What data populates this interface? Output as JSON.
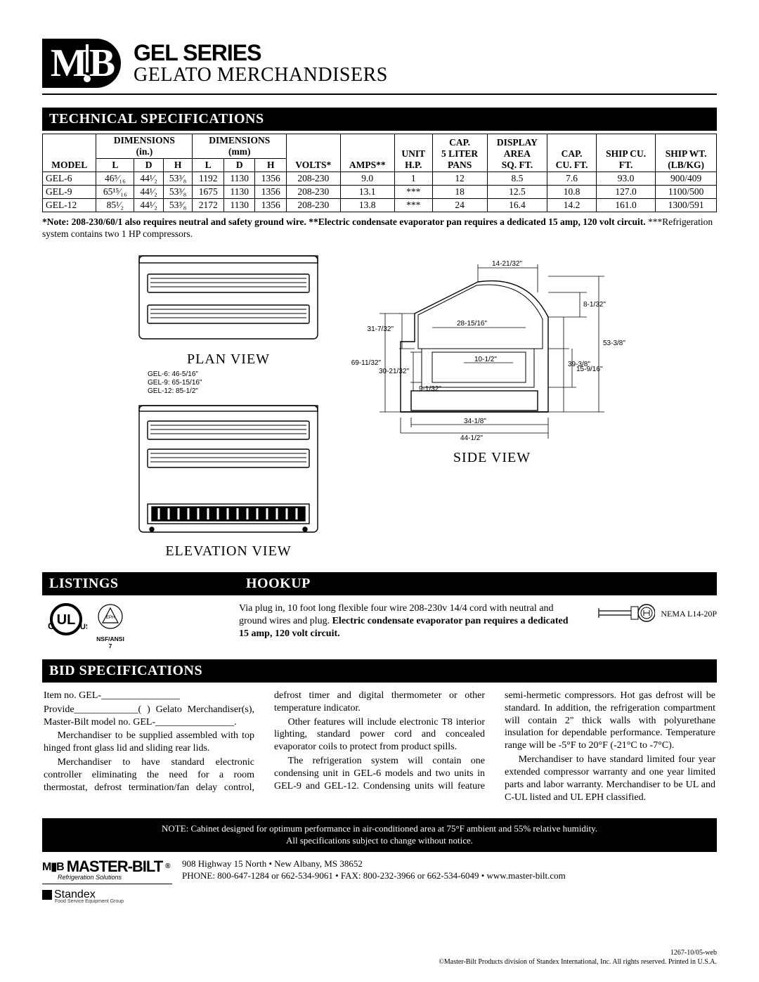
{
  "header": {
    "series": "GEL SERIES",
    "product": "GELATO MERCHANDISERS"
  },
  "sections": {
    "tech": "TECHNICAL SPECIFICATIONS",
    "listings": "LISTINGS",
    "hookup": "HOOKUP",
    "bid": "BID SPECIFICATIONS"
  },
  "spec_table": {
    "group_headers": {
      "dim_in": "DIMENSIONS\n(in.)",
      "dim_mm": "DIMENSIONS\n(mm)",
      "cap_pans": "CAP.\n5 LITER\nPANS",
      "disp_area": "DISPLAY\nAREA\nSQ. FT.",
      "cap_cuft": "CAP.\nCU. FT.",
      "ship_cuft": "SHIP CU.\nFT.",
      "ship_wt": "SHIP WT.\n(LB/KG)"
    },
    "col_headers": [
      "MODEL",
      "L",
      "D",
      "H",
      "L",
      "D",
      "H",
      "VOLTS*",
      "AMPS**",
      "UNIT\nH.P."
    ],
    "rows": [
      {
        "model": "GEL-6",
        "Lin": "46⁵⁄₁₆",
        "Din": "44¹⁄₂",
        "Hin": "53³⁄₈",
        "Lmm": "1192",
        "Dmm": "1130",
        "Hmm": "1356",
        "volts": "208-230",
        "amps": "9.0",
        "hp": "1",
        "pans": "12",
        "area": "8.5",
        "cuft": "7.6",
        "shipcu": "93.0",
        "shipwt": "900/409"
      },
      {
        "model": "GEL-9",
        "Lin": "65¹⁵⁄₁₆",
        "Din": "44¹⁄₂",
        "Hin": "53³⁄₈",
        "Lmm": "1675",
        "Dmm": "1130",
        "Hmm": "1356",
        "volts": "208-230",
        "amps": "13.1",
        "hp": "***",
        "pans": "18",
        "area": "12.5",
        "cuft": "10.8",
        "shipcu": "127.0",
        "shipwt": "1100/500"
      },
      {
        "model": "GEL-12",
        "Lin": "85¹⁄₂",
        "Din": "44¹⁄₂",
        "Hin": "53³⁄₈",
        "Lmm": "2172",
        "Dmm": "1130",
        "Hmm": "1356",
        "volts": "208-230",
        "amps": "13.8",
        "hp": "***",
        "pans": "24",
        "area": "16.4",
        "cuft": "14.2",
        "shipcu": "161.0",
        "shipwt": "1300/591"
      }
    ]
  },
  "table_note": {
    "bold": "*Note: 208-230/60/1 also requires neutral and safety ground wire. **Electric condensate evaporator pan requires a dedicated 15 amp, 120 volt circuit. ",
    "plain": "***Refrigeration system contains two 1 HP compressors."
  },
  "views": {
    "plan": "PLAN VIEW",
    "elevation": "ELEVATION VIEW",
    "side": "SIDE VIEW",
    "plan_dims": "GEL-6: 46-5/16\"\nGEL-9: 65-15/16\"\nGEL-12: 85-1/2\"",
    "side_dims": {
      "a": "14-21/32\"",
      "b": "8-1/32\"",
      "c": "31-7/32\"",
      "d": "28-15/16\"",
      "e": "53-3/8\"",
      "f": "10-1/2\"",
      "g": "69-11/32\"",
      "h": "39-3/8\"",
      "i": "30-21/32\"",
      "j": "9-1/32\"",
      "k": "15-9/16\"",
      "l": "34-1/8\"",
      "m": "44-1/2\""
    }
  },
  "listings": {
    "nsf": "NSF/ANSI 7"
  },
  "hookup": {
    "text_a": "Via plug in, 10 foot long flexible four wire 208-230v 14/4 cord with neutral and ground wires and plug. ",
    "text_b_bold": "Electric condensate evaporator pan requires a dedicated 15 amp, 120 volt circuit.",
    "plug": "NEMA L14-20P"
  },
  "bid": {
    "l1": "Item no. GEL-________________",
    "l2": "Provide_____________(        ) Gelato Merchandiser(s), Master-Bilt model no. GEL-________________.",
    "p1": "Merchandiser to be supplied assembled with top hinged front glass lid and sliding rear lids.",
    "p2": "Merchandiser to have standard electronic controller eliminating the need for a room thermostat, defrost termination/fan delay control, defrost timer and digital thermometer or other temperature indicator.",
    "p3": "Other features will include electronic T8 interior lighting, standard power cord and concealed evaporator coils to protect from product spills.",
    "p4": "The refrigeration system will contain one condensing unit in GEL-6 models and two units in GEL-9 and GEL-12. Condensing units will feature semi-hermetic compressors. Hot gas defrost will be standard. In addition, the refrigeration compartment will contain 2\" thick walls with polyurethane insulation for dependable performance. Temperature range will be -5°F to 20°F (-21°C to -7°C).",
    "p5": "Merchandiser to have standard limited four year extended compressor warranty and one year limited parts and labor warranty. Merchandiser to be UL and C-UL listed and UL EPH classified."
  },
  "note_box": {
    "l1": "NOTE: Cabinet designed for optimum performance in air-conditioned area at 75°F ambient and 55% relative humidity.",
    "l2": "All specifications subject to change without notice."
  },
  "footer": {
    "brand": "MASTER-BILT",
    "reg": "®",
    "tag": "Refrigeration Solutions",
    "standex": "Standex",
    "standex_tag": "Food Service Equipment Group",
    "addr": "908 Highway 15 North • New Albany, MS 38652",
    "contact": "PHONE: 800-647-1284 or 662-534-9061 • FAX: 800-232-3966 or 662-534-6049 • www.master-bilt.com",
    "meta1": "1267-10/05-web",
    "meta2": "©Master-Bilt Products division of Standex International, Inc. All rights reserved. Printed in U.S.A."
  },
  "colors": {
    "bg": "#ffffff",
    "fg": "#000000"
  }
}
